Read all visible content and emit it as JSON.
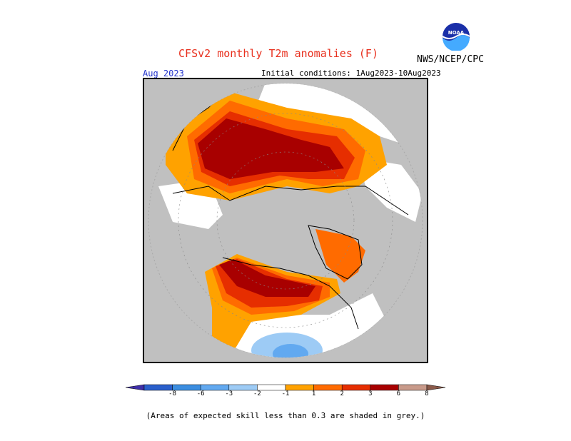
{
  "title": "CFSv2 monthly T2m anomalies (F)",
  "agency": "NWS/NCEP/CPC",
  "logo_text": "NOAA",
  "month_label": "Aug 2023",
  "initial_conditions": "Initial conditions: 1Aug2023-10Aug2023",
  "footnote": "(Areas of expected skill less than 0.3 are shaded in grey.)",
  "colors": {
    "no_skill": "#c0c0c0",
    "neutral": "#ffffff",
    "title": "#e8301e",
    "month": "#2233cc"
  },
  "colorbar": {
    "bins": [
      {
        "color": "#3f2fa8"
      },
      {
        "color": "#2a5fcb"
      },
      {
        "color": "#3b8de0"
      },
      {
        "color": "#62a9f0"
      },
      {
        "color": "#9dcbf5"
      },
      {
        "color": "#ffffff"
      },
      {
        "color": "#ffa200"
      },
      {
        "color": "#ff6b00"
      },
      {
        "color": "#e62e00"
      },
      {
        "color": "#a80000"
      },
      {
        "color": "#c89a8a"
      },
      {
        "color": "#8a5a4a"
      }
    ],
    "labels": [
      "-8",
      "-6",
      "-3",
      "-2",
      "-1",
      "1",
      "2",
      "3",
      "6",
      "8"
    ]
  }
}
